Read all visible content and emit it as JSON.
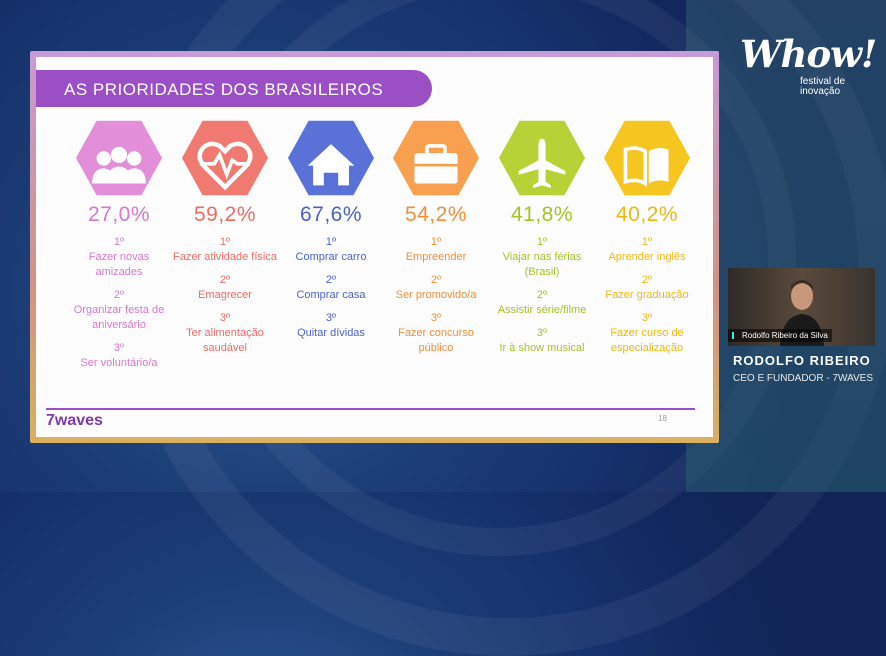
{
  "slide": {
    "title": "AS PRIORIDADES DOS BRASILEIROS",
    "brand": "7waves",
    "page_number": "18",
    "columns": [
      {
        "icon": "people-icon",
        "color": "#e28ed8",
        "text_color": "#d877d0",
        "percent": "27,0%",
        "items": [
          {
            "rank": "1º",
            "label": "Fazer novas amizades"
          },
          {
            "rank": "2º",
            "label": "Organizar festa de aniversário"
          },
          {
            "rank": "3º",
            "label": "Ser voluntário/a"
          }
        ]
      },
      {
        "icon": "heartbeat-icon",
        "color": "#f07a72",
        "text_color": "#ec6c64",
        "percent": "59,2%",
        "items": [
          {
            "rank": "1º",
            "label": "Fazer atividade física"
          },
          {
            "rank": "2º",
            "label": "Emagrecer"
          },
          {
            "rank": "3º",
            "label": "Ter alimentação saudável"
          }
        ]
      },
      {
        "icon": "house-icon",
        "color": "#5a72d8",
        "text_color": "#4a62c8",
        "percent": "67,6%",
        "items": [
          {
            "rank": "1º",
            "label": "Comprar carro"
          },
          {
            "rank": "2º",
            "label": "Comprar casa"
          },
          {
            "rank": "3º",
            "label": "Quitar dívidas"
          }
        ]
      },
      {
        "icon": "briefcase-icon",
        "color": "#f8a050",
        "text_color": "#f08e3a",
        "percent": "54,2%",
        "items": [
          {
            "rank": "1º",
            "label": "Empreender"
          },
          {
            "rank": "2º",
            "label": "Ser promovido/a"
          },
          {
            "rank": "3º",
            "label": "Fazer concurso público"
          }
        ]
      },
      {
        "icon": "airplane-icon",
        "color": "#b6d236",
        "text_color": "#a4c22a",
        "percent": "41,8%",
        "items": [
          {
            "rank": "1º",
            "label": "Viajar nas férias (Brasil)"
          },
          {
            "rank": "2º",
            "label": "Assistir série/filme"
          },
          {
            "rank": "3º",
            "label": "Ir à show musical"
          }
        ]
      },
      {
        "icon": "book-icon",
        "color": "#f6c620",
        "text_color": "#eeb810",
        "percent": "40,2%",
        "items": [
          {
            "rank": "1º",
            "label": "Aprender inglês"
          },
          {
            "rank": "2º",
            "label": "Fazer graduação"
          },
          {
            "rank": "3º",
            "label": "Fazer curso de especialização"
          }
        ]
      }
    ]
  },
  "logo": {
    "word": "Whow!",
    "tagline1": "festival de",
    "tagline2": "inovação"
  },
  "camera": {
    "participant_name": "Rodolfo Ribeiro da Silva"
  },
  "speaker": {
    "name": "RODOLFO RIBEIRO",
    "role": "CEO E FUNDADOR - 7WAVES"
  }
}
